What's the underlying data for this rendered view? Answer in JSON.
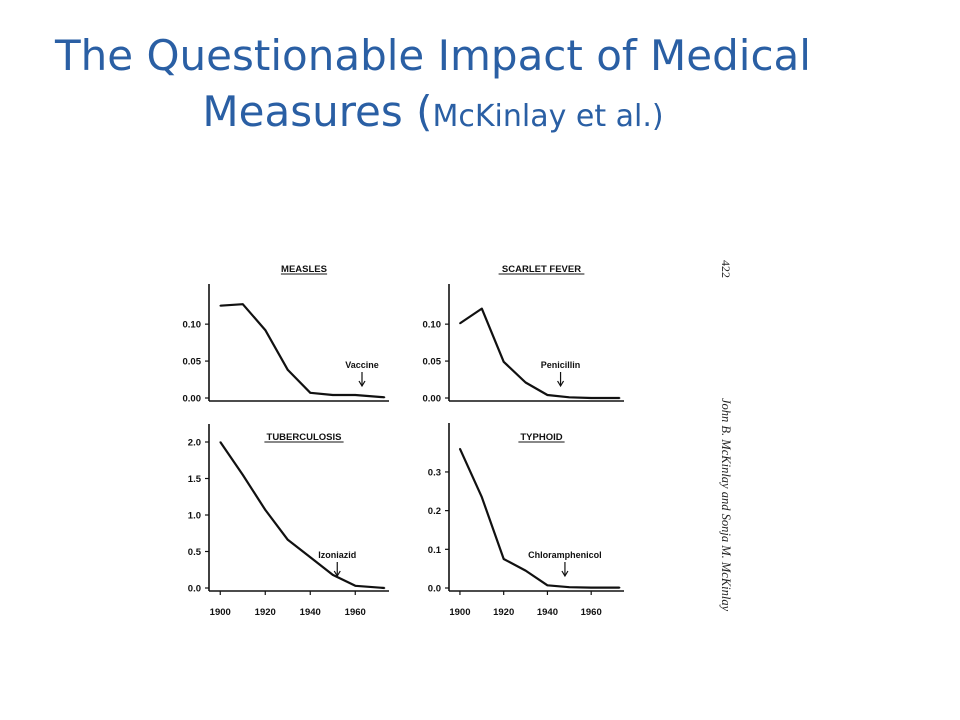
{
  "slide": {
    "title_line1": "The Questionable Impact of Medical",
    "title_line2_main": "Measures (",
    "title_line2_sub": "McKinlay et al.)"
  },
  "figure": {
    "page_number": "422",
    "author_caption": "John B. McKinlay and Sonja M. McKinlay"
  },
  "chart_data": [
    {
      "type": "line",
      "title": "MEASLES",
      "x": [
        1900,
        1910,
        1920,
        1930,
        1940,
        1950,
        1960,
        1973
      ],
      "values": [
        0.125,
        0.127,
        0.092,
        0.038,
        0.007,
        0.004,
        0.004,
        0.001
      ],
      "xlim": [
        1895,
        1975
      ],
      "ylim": [
        0.0,
        0.13
      ],
      "yticks": [
        "0.00",
        "0.05",
        "0.10"
      ],
      "xticks": [],
      "annotation": {
        "label": "Vaccine",
        "year": 1963
      }
    },
    {
      "type": "line",
      "title": "SCARLET FEVER",
      "x": [
        1900,
        1910,
        1920,
        1930,
        1940,
        1950,
        1960,
        1973
      ],
      "values": [
        0.101,
        0.121,
        0.049,
        0.021,
        0.004,
        0.001,
        0.0,
        0.0
      ],
      "xlim": [
        1895,
        1975
      ],
      "ylim": [
        0.0,
        0.13
      ],
      "yticks": [
        "0.00",
        "0.05",
        "0.10"
      ],
      "xticks": [],
      "annotation": {
        "label": "Penicillin",
        "year": 1946
      }
    },
    {
      "type": "line",
      "title": "TUBERCULOSIS",
      "x": [
        1900,
        1910,
        1920,
        1930,
        1940,
        1950,
        1960,
        1973
      ],
      "values": [
        2.0,
        1.55,
        1.07,
        0.66,
        0.42,
        0.18,
        0.03,
        0.0
      ],
      "xlim": [
        1895,
        1975
      ],
      "ylim": [
        0.0,
        2.0
      ],
      "yticks": [
        "0.0",
        "0.5",
        "1.0",
        "1.5",
        "2.0"
      ],
      "xticks": [
        "1900",
        "1920",
        "1940",
        "1960"
      ],
      "annotation": {
        "label": "Izoniazid",
        "year": 1952
      }
    },
    {
      "type": "line",
      "title": "TYPHOID",
      "x": [
        1900,
        1910,
        1920,
        1930,
        1940,
        1950,
        1960,
        1973
      ],
      "values": [
        0.36,
        0.235,
        0.075,
        0.045,
        0.007,
        0.002,
        0.001,
        0.001
      ],
      "xlim": [
        1895,
        1975
      ],
      "ylim": [
        0.0,
        0.38
      ],
      "yticks": [
        "0.0",
        "0.1",
        "0.2",
        "0.3"
      ],
      "xticks": [
        "1900",
        "1920",
        "1940",
        "1960"
      ],
      "annotation": {
        "label": "Chloramphenicol",
        "year": 1948
      }
    }
  ]
}
